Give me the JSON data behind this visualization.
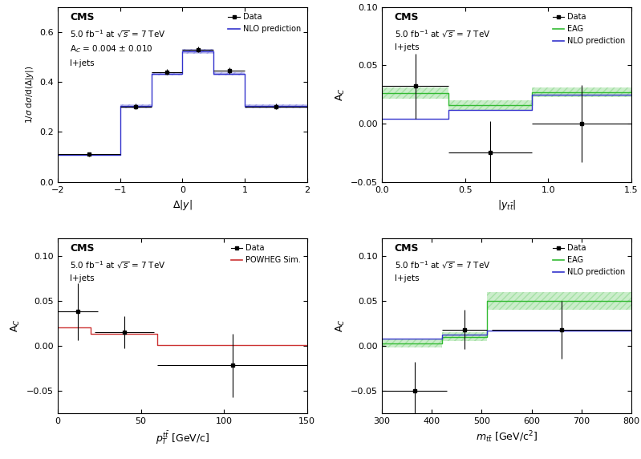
{
  "panel_ul": {
    "title_lines": [
      "CMS",
      "5.0 fb$^{-1}$ at $\\sqrt{s}$ = 7 TeV",
      "A$_C$ = 0.004 ± 0.010",
      "l+jets"
    ],
    "ylabel": "1/$\\sigma$ d$\\sigma$/d($\\Delta|y|$)",
    "xlabel": "$\\Delta|y|$",
    "xlim": [
      -2,
      2
    ],
    "ylim": [
      0,
      0.7
    ],
    "yticks": [
      0,
      0.2,
      0.4,
      0.6
    ],
    "xticks": [
      -2,
      -1,
      0,
      1,
      2
    ],
    "data_x": [
      -1.5,
      -0.75,
      -0.25,
      0.25,
      0.75,
      1.5
    ],
    "data_xerr": [
      0.5,
      0.25,
      0.25,
      0.25,
      0.25,
      0.5
    ],
    "data_y": [
      0.11,
      0.302,
      0.44,
      0.53,
      0.445,
      0.302
    ],
    "data_yerr": [
      0.008,
      0.012,
      0.012,
      0.012,
      0.012,
      0.012
    ],
    "nlo_bins": [
      -2,
      -1,
      -0.5,
      0,
      0.5,
      1,
      2
    ],
    "nlo_vals": [
      0.108,
      0.303,
      0.432,
      0.522,
      0.432,
      0.303
    ],
    "nlo_err": [
      0.004,
      0.007,
      0.007,
      0.009,
      0.007,
      0.007
    ],
    "nlo_color": "#3333cc",
    "legend_entries": [
      "Data",
      "NLO prediction"
    ]
  },
  "panel_ur": {
    "title_lines": [
      "CMS",
      "5.0 fb$^{-1}$ at $\\sqrt{s}$ = 7 TeV",
      "l+jets"
    ],
    "ylabel": "A$_C$",
    "xlabel": "$|y_{t\\bar{t}}|$",
    "xlim": [
      0,
      1.5
    ],
    "ylim": [
      -0.05,
      0.1
    ],
    "yticks": [
      -0.05,
      0,
      0.05,
      0.1
    ],
    "xticks": [
      0,
      0.5,
      1.0,
      1.5
    ],
    "data_x": [
      0.2,
      0.65,
      1.2
    ],
    "data_xerr": [
      0.2,
      0.25,
      0.3
    ],
    "data_y": [
      0.032,
      -0.025,
      0.0
    ],
    "data_yerr": [
      0.028,
      0.027,
      0.033
    ],
    "eag_bins": [
      0,
      0.4,
      0.9,
      1.5
    ],
    "eag_vals": [
      0.026,
      0.016,
      0.027
    ],
    "eag_err": [
      0.005,
      0.004,
      0.004
    ],
    "eag_color": "#33bb33",
    "nlo_bins": [
      0,
      0.4,
      0.9,
      1.5
    ],
    "nlo_vals": [
      0.004,
      0.012,
      0.025
    ],
    "nlo_color": "#3333cc",
    "legend_entries": [
      "Data",
      "EAG",
      "NLO prediction"
    ]
  },
  "panel_ll": {
    "title_lines": [
      "CMS",
      "5.0 fb$^{-1}$ at $\\sqrt{s}$ = 7 TeV",
      "l+jets"
    ],
    "ylabel": "A$_C$",
    "xlabel": "$p_T^{t\\bar{t}}$ [GeV/c]",
    "xlim": [
      0,
      150
    ],
    "ylim": [
      -0.075,
      0.12
    ],
    "yticks": [
      -0.05,
      0,
      0.05,
      0.1
    ],
    "xticks": [
      0,
      50,
      100,
      150
    ],
    "data_x": [
      12,
      40,
      105
    ],
    "data_xerr": [
      12,
      18,
      45
    ],
    "data_y": [
      0.038,
      0.015,
      -0.022
    ],
    "data_yerr": [
      0.032,
      0.018,
      0.035
    ],
    "powheg_bins": [
      0,
      20,
      60,
      150
    ],
    "powheg_vals": [
      0.02,
      0.013,
      0.001
    ],
    "powheg_color": "#cc3333",
    "legend_entries": [
      "Data",
      "POWHEG Sim."
    ]
  },
  "panel_lr": {
    "title_lines": [
      "CMS",
      "5.0 fb$^{-1}$ at $\\sqrt{s}$ = 7 TeV",
      "l+jets"
    ],
    "ylabel": "A$_C$",
    "xlabel": "$m_{t\\bar{t}}$ [GeV/c$^2$]",
    "xlim": [
      300,
      800
    ],
    "ylim": [
      -0.075,
      0.12
    ],
    "yticks": [
      -0.05,
      0,
      0.05,
      0.1
    ],
    "xticks": [
      300,
      400,
      500,
      600,
      700,
      800
    ],
    "data_x": [
      365,
      465,
      660
    ],
    "data_xerr": [
      65,
      45,
      140
    ],
    "data_y": [
      -0.05,
      0.018,
      0.018
    ],
    "data_yerr": [
      0.032,
      0.022,
      0.032
    ],
    "eag_bins": [
      300,
      420,
      510,
      800
    ],
    "eag_vals": [
      0.003,
      0.01,
      0.05
    ],
    "eag_err": [
      0.005,
      0.005,
      0.01
    ],
    "eag_color": "#33bb33",
    "nlo_bins": [
      300,
      420,
      510,
      800
    ],
    "nlo_vals": [
      0.008,
      0.012,
      0.017
    ],
    "nlo_color": "#3333cc",
    "legend_entries": [
      "Data",
      "EAG",
      "NLO prediction"
    ]
  }
}
